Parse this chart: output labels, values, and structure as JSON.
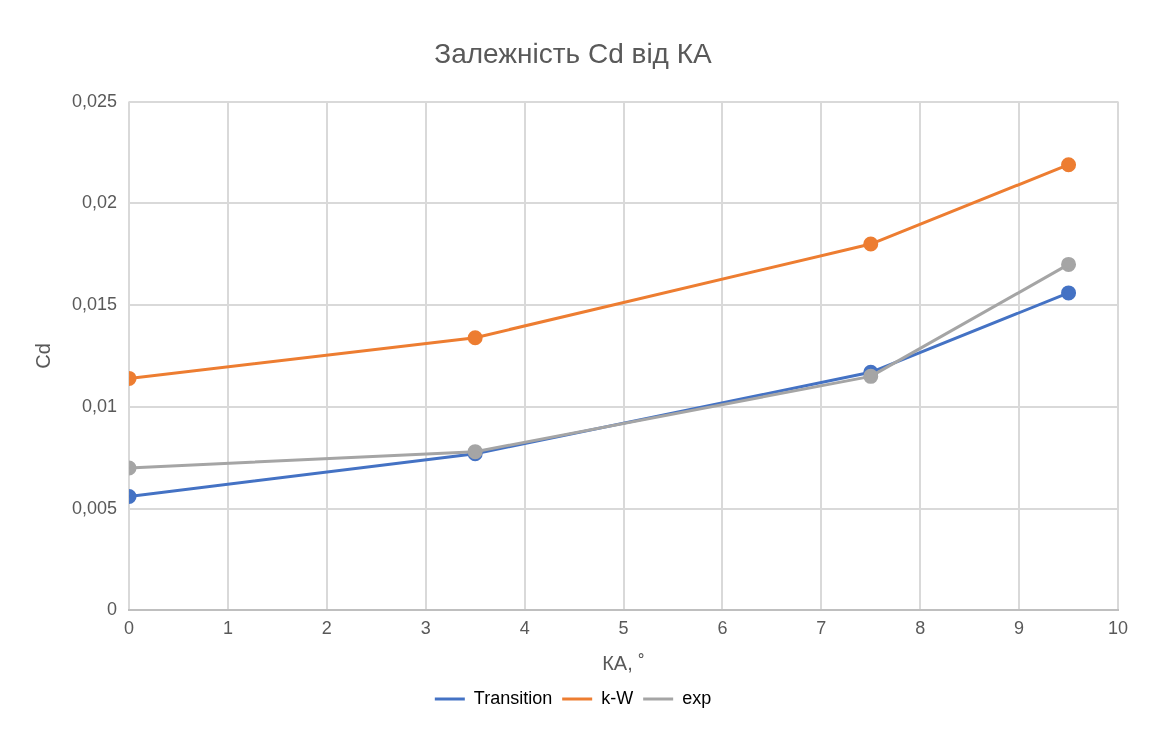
{
  "chart_data": {
    "type": "line",
    "title": "Залежність Cd від КА",
    "xlabel": "КА, ˚",
    "ylabel": "Cd",
    "x": [
      0,
      3.5,
      7.5,
      9.5
    ],
    "series": [
      {
        "name": "Transition",
        "color": "#4472c4",
        "values": [
          0.0056,
          0.0077,
          0.0117,
          0.0156
        ]
      },
      {
        "name": "k-W",
        "color": "#ed7d31",
        "values": [
          0.0114,
          0.0134,
          0.018,
          0.0219
        ]
      },
      {
        "name": "exp",
        "color": "#a5a5a5",
        "values": [
          0.007,
          0.0078,
          0.0115,
          0.017
        ]
      }
    ],
    "xlim": [
      0,
      10
    ],
    "xticks": [
      0,
      1,
      2,
      3,
      4,
      5,
      6,
      7,
      8,
      9,
      10
    ],
    "ylim": [
      0,
      0.025
    ],
    "yticks": [
      0,
      {
        "value": 0.005,
        "label": "0,005"
      },
      {
        "value": 0.01,
        "label": "0,01"
      },
      {
        "value": 0.015,
        "label": "0,015"
      },
      {
        "value": 0.02,
        "label": "0,02"
      },
      {
        "value": 0.025,
        "label": "0,025"
      }
    ],
    "grid": true,
    "legend": "bottom",
    "marker": "circle",
    "line_style": "solid"
  }
}
